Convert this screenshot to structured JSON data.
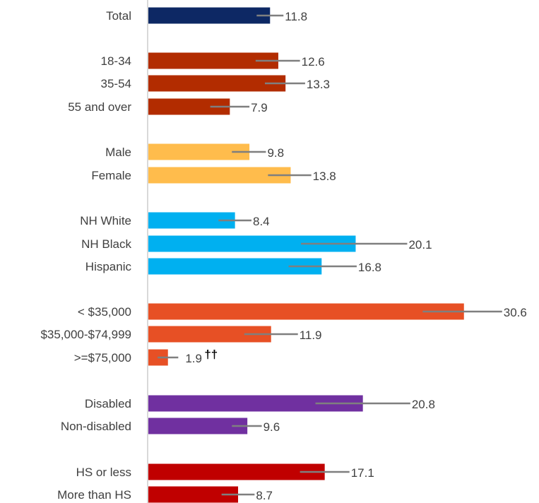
{
  "chart_data": {
    "type": "bar",
    "orientation": "horizontal",
    "grid": false,
    "xlim": [
      0,
      32
    ],
    "categories": [
      "Total",
      "18-34",
      "35-54",
      "55 and over",
      "Male",
      "Female",
      "NH White",
      "NH Black",
      "Hispanic",
      "< $35,000",
      "$35,000-$74,999",
      ">=$75,000",
      "Disabled",
      "Non-disabled",
      "HS or less",
      "More than HS"
    ],
    "groups": [
      {
        "color": "#0d2864",
        "members": [
          0
        ]
      },
      {
        "color": "#b22c00",
        "members": [
          1,
          2,
          3
        ]
      },
      {
        "color": "#ffbc4c",
        "members": [
          4,
          5
        ]
      },
      {
        "color": "#00b0f0",
        "members": [
          6,
          7,
          8
        ]
      },
      {
        "color": "#e75025",
        "members": [
          9,
          10,
          11
        ]
      },
      {
        "color": "#7030a0",
        "members": [
          12,
          13
        ]
      },
      {
        "color": "#c00000",
        "members": [
          14,
          15
        ]
      }
    ],
    "values": [
      11.8,
      12.6,
      13.3,
      7.9,
      9.8,
      13.8,
      8.4,
      20.1,
      16.8,
      30.6,
      11.9,
      1.9,
      20.8,
      9.6,
      17.1,
      8.7
    ],
    "value_labels": [
      "11.8",
      "12.6",
      "13.3",
      "7.9",
      "9.8",
      "13.8",
      "8.4",
      "20.1",
      "16.8",
      "30.6",
      "11.9",
      "1.9",
      "20.8",
      "9.6",
      "17.1",
      "8.7"
    ],
    "value_label_markers": {
      "11": "††"
    },
    "error_bars": [
      [
        10.5,
        13.1
      ],
      [
        10.4,
        14.7
      ],
      [
        11.3,
        15.2
      ],
      [
        6.0,
        9.8
      ],
      [
        8.1,
        11.4
      ],
      [
        11.6,
        15.8
      ],
      [
        6.8,
        10.0
      ],
      [
        14.8,
        25.1
      ],
      [
        13.6,
        20.2
      ],
      [
        26.6,
        34.3
      ],
      [
        9.3,
        14.5
      ],
      [
        0.9,
        2.9
      ],
      [
        16.2,
        25.4
      ],
      [
        8.1,
        11.0
      ],
      [
        14.7,
        19.5
      ],
      [
        7.1,
        10.3
      ]
    ],
    "colors": {
      "axis": "#d9d9d9",
      "error_bar": "#7f7f7f",
      "text": "#404040"
    }
  }
}
